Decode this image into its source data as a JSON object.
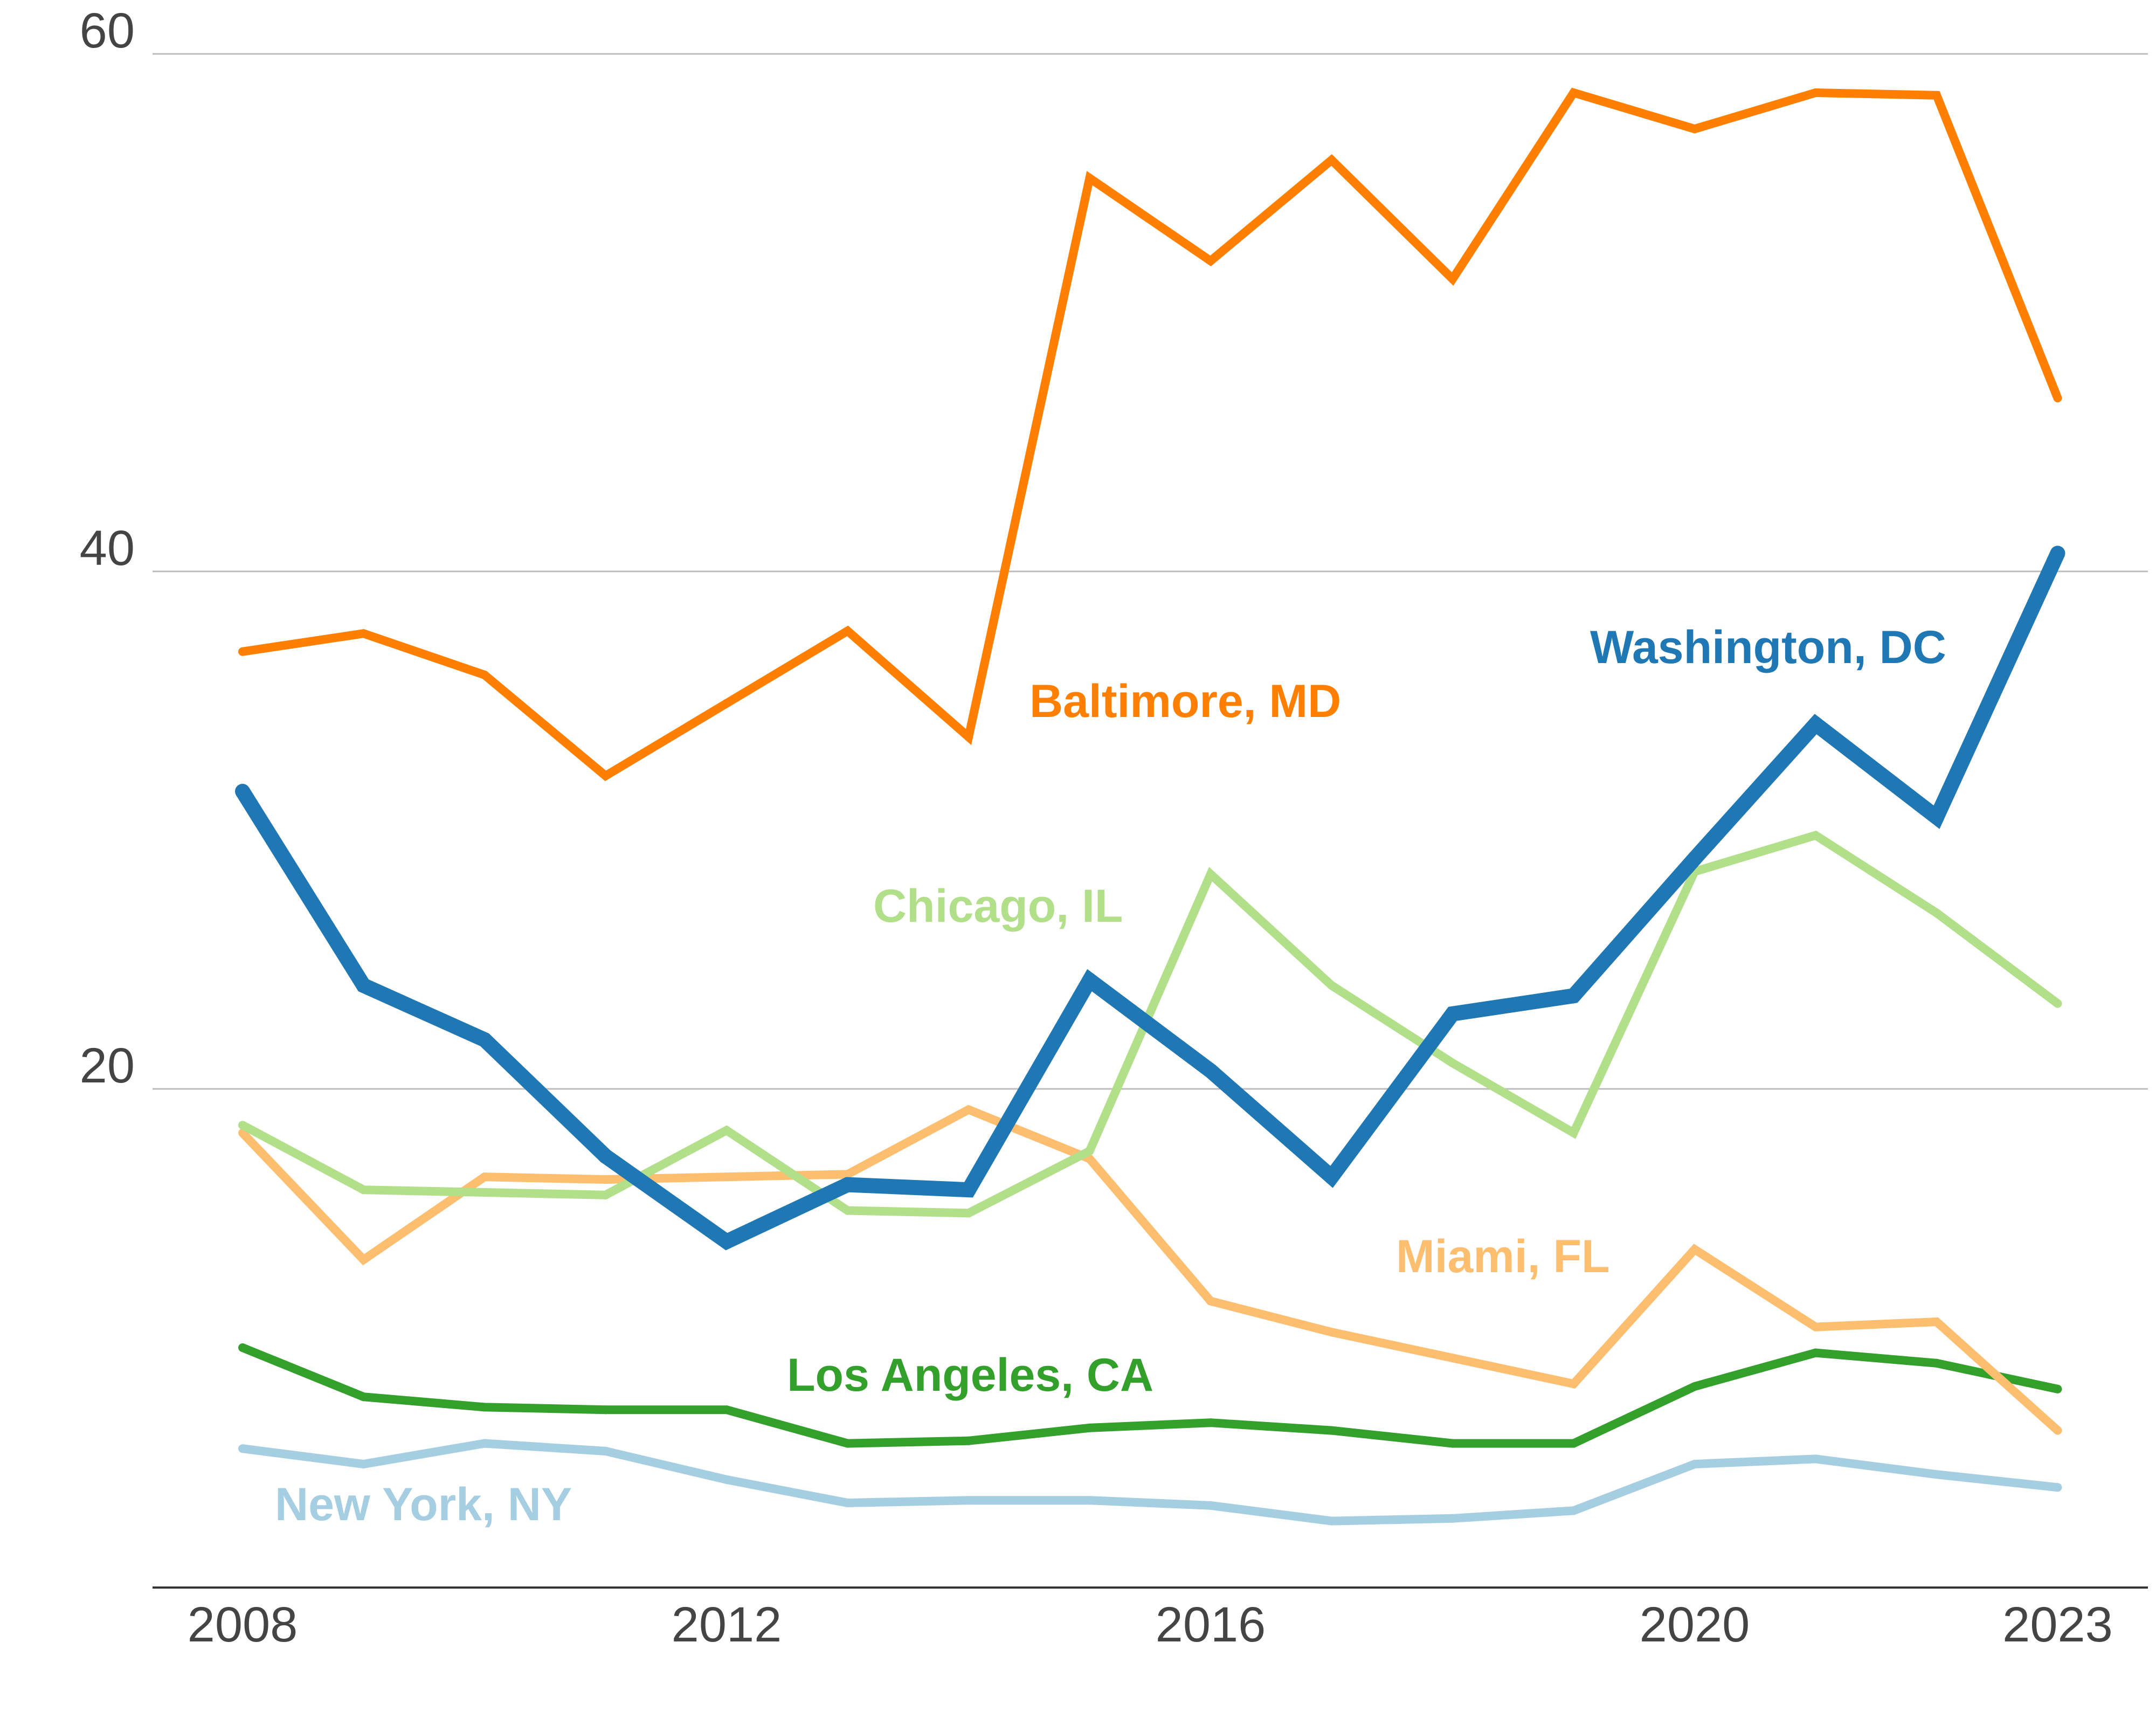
{
  "chart_data": {
    "type": "line",
    "title": "",
    "xlabel": "",
    "ylabel": "",
    "x": [
      2008,
      2009,
      2010,
      2011,
      2012,
      2013,
      2014,
      2015,
      2016,
      2017,
      2018,
      2019,
      2020,
      2021,
      2022,
      2023
    ],
    "x_ticks": [
      "2008",
      "2012",
      "2016",
      "2020",
      "2023"
    ],
    "y_ticks": [
      "20",
      "40",
      "60"
    ],
    "ylim": [
      1.2,
      60
    ],
    "xlim": [
      2007.3,
      2023.8
    ],
    "grid": true,
    "series": [
      {
        "name": "New York, NY",
        "label": "New York, NY",
        "color": "#a6cee3",
        "values": [
          6.1,
          5.5,
          6.3,
          6.0,
          4.9,
          4.0,
          4.1,
          4.1,
          3.9,
          3.3,
          3.4,
          3.7,
          5.5,
          5.7,
          5.1,
          4.6
        ]
      },
      {
        "name": "Los Angeles, CA",
        "label": "Los Angeles, CA",
        "color": "#33a02c",
        "values": [
          10.0,
          8.1,
          7.7,
          7.6,
          7.6,
          6.3,
          6.4,
          6.9,
          7.1,
          6.8,
          6.3,
          6.3,
          8.5,
          9.8,
          9.4,
          8.4
        ]
      },
      {
        "name": "Miami, FL",
        "label": "Miami, FL",
        "color": "#fdbf6f",
        "values": [
          18.3,
          13.4,
          16.6,
          16.5,
          16.6,
          16.7,
          19.2,
          17.3,
          11.8,
          10.6,
          9.6,
          8.6,
          13.8,
          10.8,
          11.0,
          6.8
        ]
      },
      {
        "name": "Chicago, IL",
        "label": "Chicago, IL",
        "color": "#b2df8a",
        "values": [
          18.6,
          16.1,
          16.0,
          15.9,
          18.4,
          15.3,
          15.2,
          17.6,
          28.3,
          24.0,
          21.0,
          18.3,
          28.4,
          29.8,
          26.8,
          23.3
        ]
      },
      {
        "name": "Washington, DC",
        "label": "Washington, DC",
        "color": "#1f78b4",
        "values": [
          31.5,
          24.0,
          21.9,
          17.4,
          14.1,
          16.3,
          16.1,
          24.2,
          20.7,
          16.6,
          22.9,
          23.6,
          28.9,
          34.1,
          30.5,
          40.7
        ]
      },
      {
        "name": "Baltimore, MD",
        "label": "Baltimore, MD",
        "color": "#ff7f00",
        "values": [
          36.9,
          37.6,
          36.0,
          32.1,
          34.9,
          37.7,
          33.6,
          55.2,
          52.0,
          55.9,
          51.3,
          58.5,
          57.1,
          58.5,
          58.4,
          46.7
        ]
      }
    ]
  }
}
